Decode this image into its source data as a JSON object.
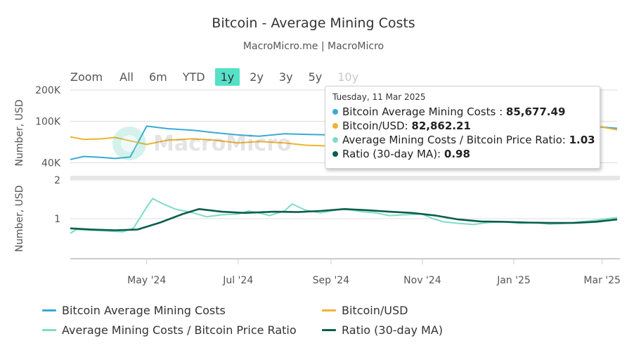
{
  "header": {
    "title": "Bitcoin - Average Mining Costs",
    "subtitle": "MacroMicro.me | MacroMicro"
  },
  "range_selector": {
    "label": "Zoom",
    "buttons": [
      "All",
      "6m",
      "YTD",
      "1y",
      "2y",
      "3y",
      "5y",
      "10y"
    ],
    "active": "1y",
    "disabled": [
      "10y"
    ]
  },
  "watermark": {
    "text": "MacroMicro"
  },
  "tooltip": {
    "date": "Tuesday, 11 Mar 2025",
    "rows": [
      {
        "label": "Bitcoin Average Mining Costs :",
        "value": "85,677.49",
        "color": "#3aa9d8"
      },
      {
        "label": "Bitcoin/USD:",
        "value": "82,862.21",
        "color": "#f0b232"
      },
      {
        "label": "Average Mining Costs / Bitcoin Price Ratio:",
        "value": "1.03",
        "color": "#7fdcc5"
      },
      {
        "label": "Ratio (30-day MA):",
        "value": "0.98",
        "color": "#0b5e4a"
      }
    ]
  },
  "colors": {
    "mining_cost": "#3aa9d8",
    "btc_usd": "#f0b232",
    "ratio": "#7fdcc5",
    "ratio_ma": "#0b5e4a",
    "grid": "#dddddd"
  },
  "legend": [
    {
      "name": "Bitcoin Average Mining Costs",
      "color": "#3aa9d8"
    },
    {
      "name": "Bitcoin/USD",
      "color": "#f0b232"
    },
    {
      "name": "Average Mining Costs / Bitcoin Price Ratio",
      "color": "#7fdcc5"
    },
    {
      "name": "Ratio (30-day MA)",
      "color": "#0b5e4a"
    }
  ],
  "chart_data": {
    "type": "line",
    "x_type": "date",
    "x_range": [
      "2024-03-11",
      "2025-03-11"
    ],
    "x_ticks": [
      {
        "date": "2024-05-01",
        "label": "May '24"
      },
      {
        "date": "2024-07-01",
        "label": "Jul '24"
      },
      {
        "date": "2024-09-01",
        "label": "Sep '24"
      },
      {
        "date": "2024-11-01",
        "label": "Nov '24"
      },
      {
        "date": "2025-01-01",
        "label": "Jan '25"
      },
      {
        "date": "2025-03-01",
        "label": "Mar '25"
      }
    ],
    "panels": [
      {
        "ylabel": "Number, USD",
        "y_scale": "log",
        "ylim": [
          30000,
          200000
        ],
        "y_ticks": [
          {
            "value": 40000,
            "label": "40K"
          },
          {
            "value": 100000,
            "label": "100K"
          },
          {
            "value": 200000,
            "label": "200K"
          }
        ],
        "series": [
          {
            "name": "Bitcoin Average Mining Costs",
            "color": "#3aa9d8",
            "x": [
              "2024-03-11",
              "2024-03-20",
              "2024-04-01",
              "2024-04-10",
              "2024-04-20",
              "2024-04-25",
              "2024-05-01",
              "2024-05-15",
              "2024-06-01",
              "2024-06-15",
              "2024-07-01",
              "2024-07-15",
              "2024-08-01",
              "2024-08-15",
              "2024-09-01",
              "2024-09-15",
              "2024-10-01",
              "2024-10-15",
              "2024-11-01",
              "2024-11-15",
              "2024-12-01",
              "2024-12-15",
              "2025-01-01",
              "2025-01-15",
              "2025-02-01",
              "2025-02-15",
              "2025-03-01",
              "2025-03-11"
            ],
            "y": [
              43000,
              46000,
              45000,
              44000,
              45500,
              62000,
              90000,
              85000,
              82000,
              78000,
              74000,
              72000,
              76000,
              75000,
              74000,
              76000,
              78000,
              80000,
              81000,
              83000,
              84000,
              86000,
              87000,
              88000,
              88000,
              89000,
              88000,
              85677
            ]
          },
          {
            "name": "Bitcoin/USD",
            "color": "#f0b232",
            "x": [
              "2024-03-11",
              "2024-03-20",
              "2024-04-01",
              "2024-04-10",
              "2024-04-20",
              "2024-05-01",
              "2024-05-15",
              "2024-06-01",
              "2024-06-15",
              "2024-07-01",
              "2024-07-15",
              "2024-08-01",
              "2024-08-15",
              "2024-09-01",
              "2024-09-15",
              "2024-10-01",
              "2024-10-15",
              "2024-11-01",
              "2024-11-15",
              "2024-12-01",
              "2024-12-15",
              "2025-01-01",
              "2025-01-15",
              "2025-02-01",
              "2025-02-15",
              "2025-03-01",
              "2025-03-11"
            ],
            "y": [
              71000,
              67000,
              68000,
              70000,
              65000,
              60000,
              66000,
              68000,
              66000,
              62000,
              64000,
              62000,
              59000,
              58000,
              60000,
              62000,
              66000,
              70000,
              90000,
              97000,
              100000,
              94000,
              98000,
              100000,
              96000,
              88000,
              82862
            ]
          }
        ]
      },
      {
        "ylabel": "Number, USD",
        "y_scale": "linear",
        "ylim": [
          0,
          2
        ],
        "y_ticks": [
          {
            "value": 1,
            "label": "1"
          },
          {
            "value": 2,
            "label": "2"
          }
        ],
        "series": [
          {
            "name": "Average Mining Costs / Bitcoin Price Ratio",
            "color": "#7fdcc5",
            "x": [
              "2024-03-11",
              "2024-03-15",
              "2024-03-25",
              "2024-04-05",
              "2024-04-15",
              "2024-04-22",
              "2024-04-27",
              "2024-05-01",
              "2024-05-05",
              "2024-05-12",
              "2024-05-20",
              "2024-06-01",
              "2024-06-10",
              "2024-06-20",
              "2024-07-01",
              "2024-07-08",
              "2024-07-15",
              "2024-07-22",
              "2024-08-01",
              "2024-08-06",
              "2024-08-15",
              "2024-08-25",
              "2024-09-01",
              "2024-09-08",
              "2024-09-15",
              "2024-09-22",
              "2024-10-01",
              "2024-10-10",
              "2024-10-20",
              "2024-11-01",
              "2024-11-08",
              "2024-11-15",
              "2024-11-25",
              "2024-12-05",
              "2024-12-15",
              "2024-12-25",
              "2025-01-05",
              "2025-01-15",
              "2025-01-25",
              "2025-02-05",
              "2025-02-15",
              "2025-02-25",
              "2025-03-05",
              "2025-03-11"
            ],
            "y": [
              0.62,
              0.72,
              0.7,
              0.68,
              0.66,
              0.75,
              1.05,
              1.3,
              1.52,
              1.38,
              1.25,
              1.15,
              1.05,
              1.1,
              1.12,
              1.2,
              1.15,
              1.08,
              1.2,
              1.38,
              1.22,
              1.15,
              1.2,
              1.25,
              1.22,
              1.18,
              1.15,
              1.08,
              1.1,
              1.12,
              1.0,
              0.92,
              0.88,
              0.85,
              0.9,
              0.92,
              0.88,
              0.9,
              0.86,
              0.88,
              0.92,
              0.96,
              1.0,
              1.03
            ]
          },
          {
            "name": "Ratio (30-day MA)",
            "color": "#0b5e4a",
            "x": [
              "2024-03-11",
              "2024-03-25",
              "2024-04-10",
              "2024-04-25",
              "2024-05-10",
              "2024-05-25",
              "2024-06-05",
              "2024-06-20",
              "2024-07-05",
              "2024-07-25",
              "2024-08-10",
              "2024-08-25",
              "2024-09-10",
              "2024-09-25",
              "2024-10-10",
              "2024-10-25",
              "2024-11-10",
              "2024-11-25",
              "2024-12-10",
              "2024-12-25",
              "2025-01-10",
              "2025-01-25",
              "2025-02-10",
              "2025-02-25",
              "2025-03-11"
            ],
            "y": [
              0.75,
              0.72,
              0.7,
              0.72,
              0.9,
              1.12,
              1.25,
              1.18,
              1.15,
              1.18,
              1.17,
              1.2,
              1.25,
              1.22,
              1.18,
              1.15,
              1.08,
              0.98,
              0.93,
              0.92,
              0.9,
              0.89,
              0.89,
              0.92,
              0.98
            ]
          }
        ]
      }
    ]
  }
}
